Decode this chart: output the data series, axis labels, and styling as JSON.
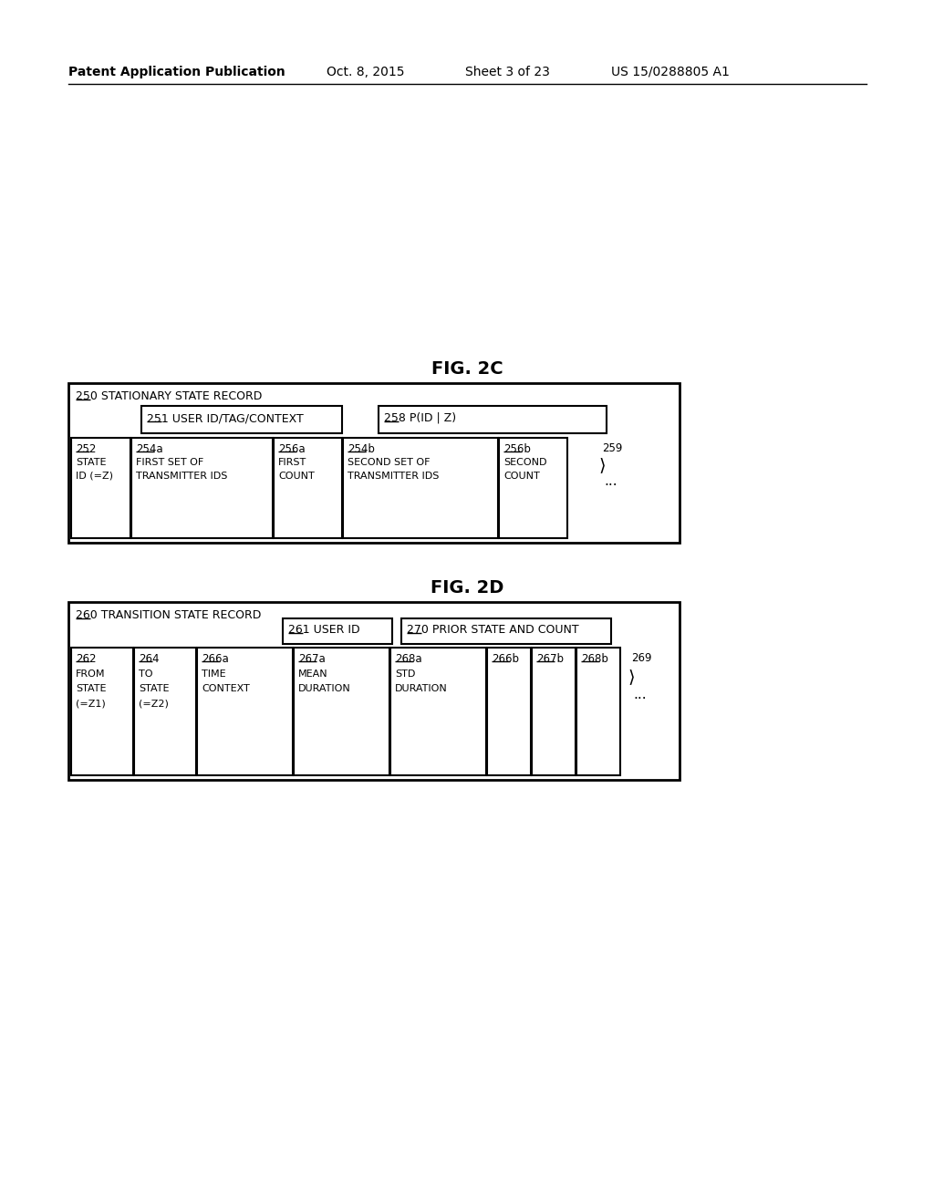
{
  "bg_color": "#ffffff",
  "header_text": "Patent Application Publication",
  "header_date": "Oct. 8, 2015",
  "header_sheet": "Sheet 3 of 23",
  "header_patent": "US 15/0288805 A1",
  "fig2c_title": "FIG. 2C",
  "fig2d_title": "FIG. 2D",
  "fig2c": {
    "outer_label_num": "250",
    "outer_label_rest": " STATIONARY STATE RECORD",
    "box251_num": "251",
    "box251_rest": " USER ID/TAG/CONTEXT",
    "box258_num": "258",
    "box258_rest": " P(ID | Z)",
    "cells": [
      {
        "num": "252",
        "lines": [
          "STATE",
          "ID (=Z)"
        ]
      },
      {
        "num": "254a",
        "lines": [
          "FIRST SET OF",
          "TRANSMITTER IDS"
        ]
      },
      {
        "num": "256a",
        "lines": [
          "FIRST",
          "COUNT"
        ]
      },
      {
        "num": "254b",
        "lines": [
          "SECOND SET OF",
          "TRANSMITTER IDS"
        ]
      },
      {
        "num": "256b",
        "lines": [
          "SECOND",
          "COUNT"
        ]
      }
    ],
    "ellipsis_num": "259"
  },
  "fig2d": {
    "outer_label_num": "260",
    "outer_label_rest": " TRANSITION STATE RECORD",
    "box261_num": "261",
    "box261_rest": " USER ID",
    "box270_num": "270",
    "box270_rest": " PRIOR STATE AND COUNT",
    "cells": [
      {
        "num": "262",
        "lines": [
          "FROM",
          "STATE",
          "(=Z1)"
        ]
      },
      {
        "num": "264",
        "lines": [
          "TO",
          "STATE",
          "(=Z2)"
        ]
      },
      {
        "num": "266a",
        "lines": [
          "TIME",
          "CONTEXT"
        ]
      },
      {
        "num": "267a",
        "lines": [
          "MEAN",
          "DURATION"
        ]
      },
      {
        "num": "268a",
        "lines": [
          "STD",
          "DURATION"
        ]
      },
      {
        "num": "266b",
        "lines": []
      },
      {
        "num": "267b",
        "lines": []
      },
      {
        "num": "268b",
        "lines": []
      }
    ],
    "ellipsis_num": "269"
  }
}
